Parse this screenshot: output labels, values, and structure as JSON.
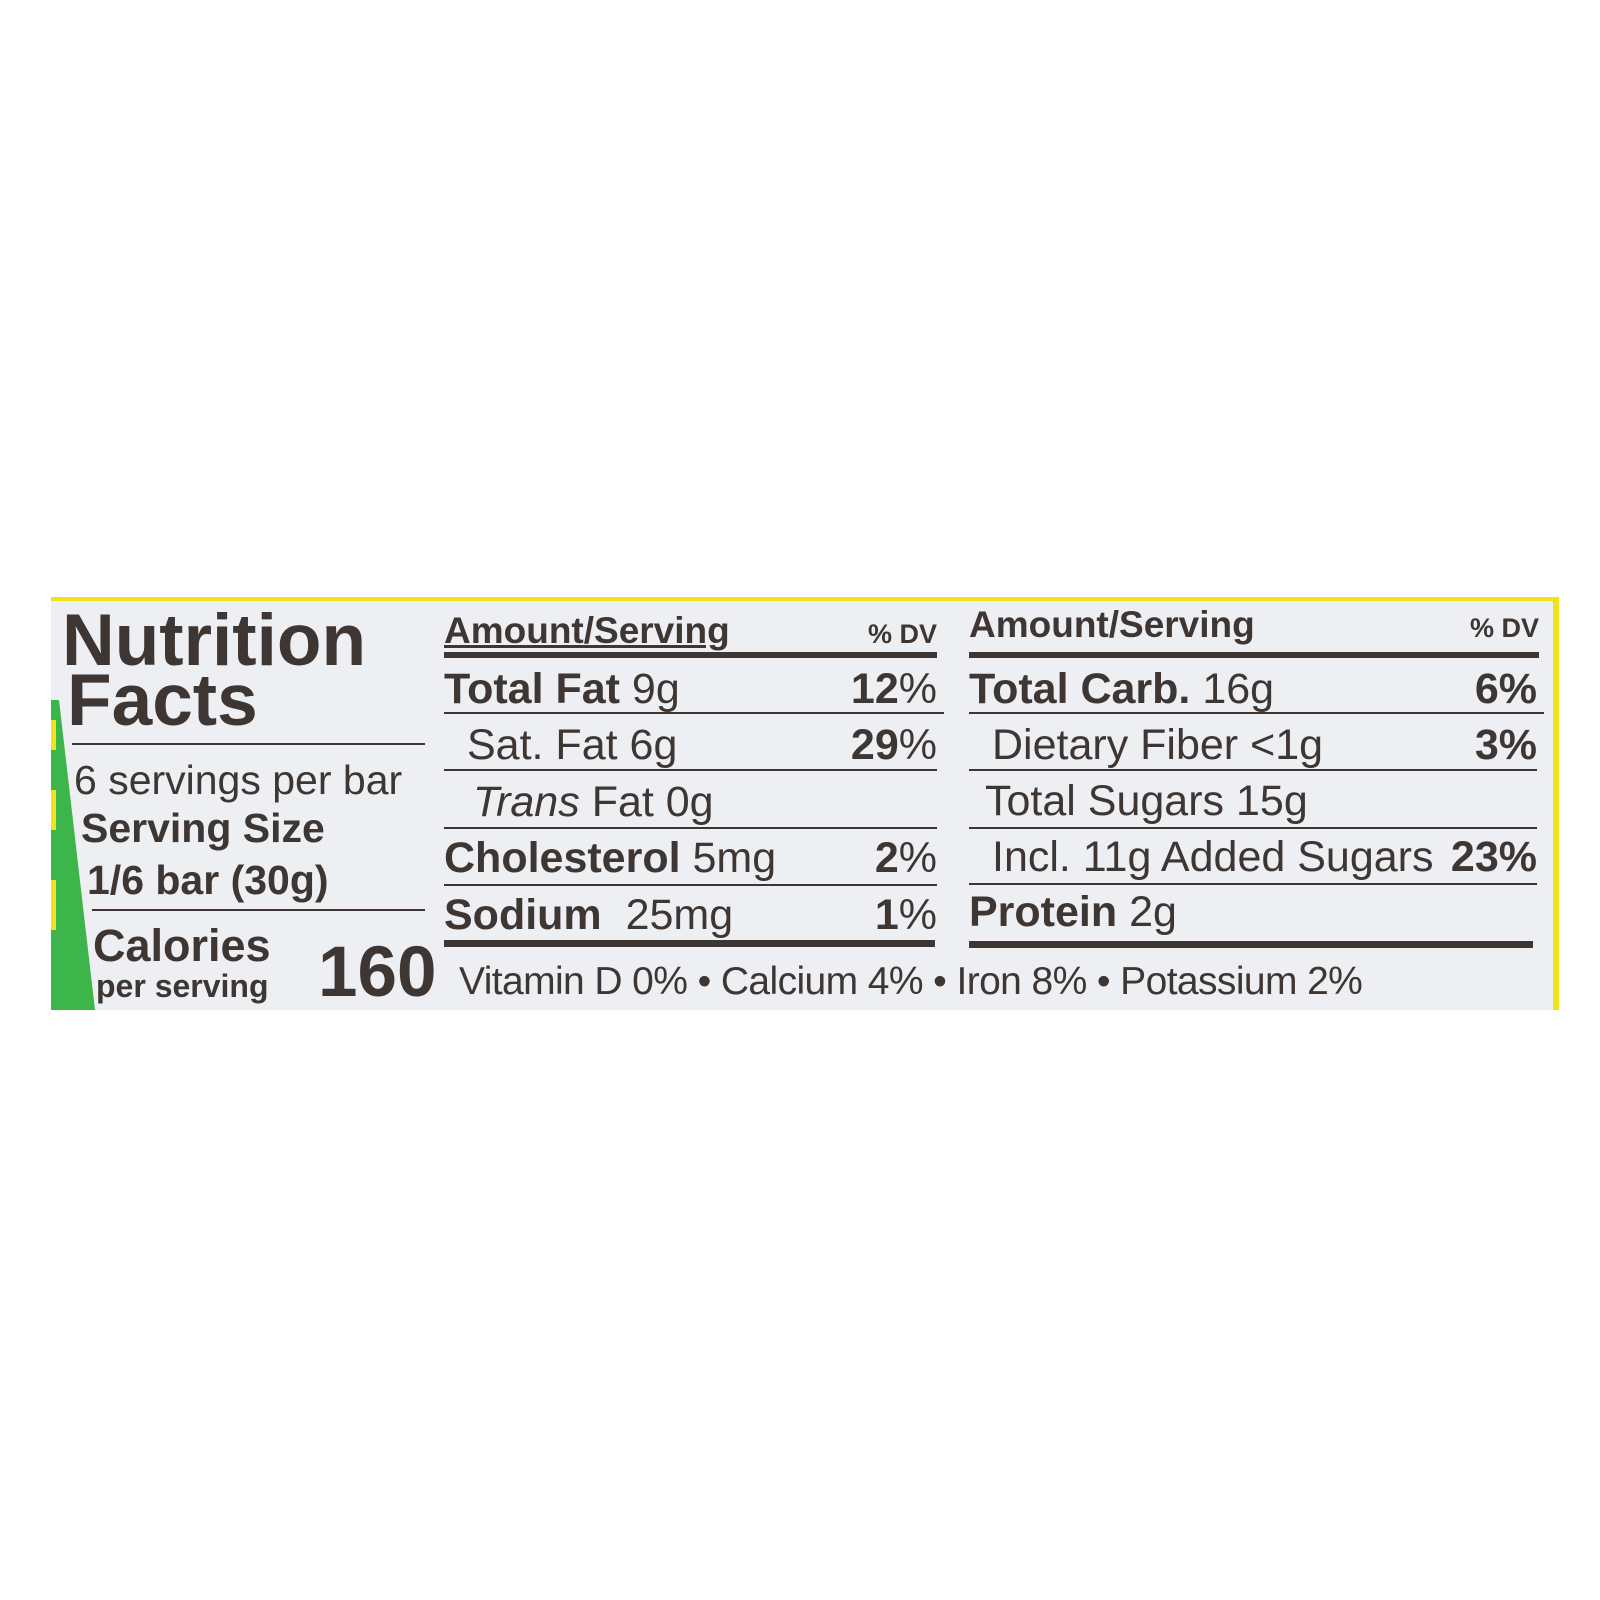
{
  "title_line1": "Nutrition",
  "title_line2": "Facts",
  "servings_per_container": "6 servings per bar",
  "serving_size_label": "Serving Size",
  "serving_size_value": "1/6 bar (30g)",
  "calories_label": "Calories",
  "calories_sub": "per serving",
  "calories_value": "160",
  "left_table": {
    "header": "Amount/Serving",
    "dv_header": "% DV",
    "rows": [
      {
        "name": "Total Fat",
        "amount": "9g",
        "dv": "12",
        "bold": true
      },
      {
        "name": "Sat. Fat",
        "amount": "6g",
        "dv": "29",
        "bold": false
      },
      {
        "name": "Trans",
        "amount": "Fat 0g",
        "dv": "",
        "bold": false,
        "italic_name": true
      },
      {
        "name": "Cholesterol",
        "amount": "5mg",
        "dv": "2",
        "bold": true
      },
      {
        "name": "Sodium",
        "amount": "25mg",
        "dv": "1",
        "bold": true
      }
    ]
  },
  "right_table": {
    "header": "Amount/Serving",
    "dv_header": "% DV",
    "rows": [
      {
        "name": "Total Carb.",
        "amount": "16g",
        "dv": "6",
        "bold": true
      },
      {
        "name": "Dietary Fiber",
        "amount": "<1g",
        "dv": "3",
        "bold": false
      },
      {
        "name": "Total Sugars",
        "amount": "15g",
        "dv": "",
        "bold": false
      },
      {
        "name": "Incl. 11g Added Sugars",
        "amount": "",
        "dv": "23",
        "bold": false
      },
      {
        "name": "Protein",
        "amount": "2g",
        "dv": "",
        "bold": true
      }
    ]
  },
  "percent_sign": "%",
  "micronutrients": "Vitamin D 0% • Calcium 4% • Iron 8% • Potassium 2%",
  "colors": {
    "text": "#3d3633",
    "panel": "#edeff3",
    "border_yellow": "#f2e21c",
    "accent_green": "#3cb54a"
  }
}
